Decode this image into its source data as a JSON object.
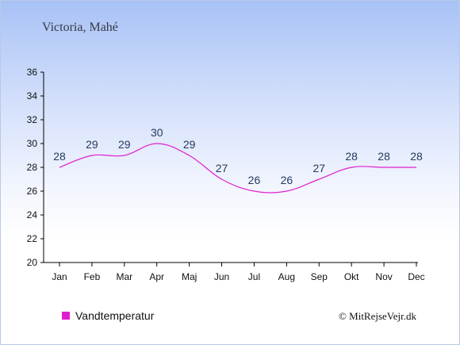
{
  "chart_data": {
    "type": "line",
    "title": "Victoria, Mahé",
    "categories": [
      "Jan",
      "Feb",
      "Mar",
      "Apr",
      "Maj",
      "Jun",
      "Jul",
      "Aug",
      "Sep",
      "Okt",
      "Nov",
      "Dec"
    ],
    "series": [
      {
        "name": "Vandtemperatur",
        "values": [
          28,
          29,
          29,
          30,
          29,
          27,
          26,
          26,
          27,
          28,
          28,
          28
        ],
        "color": "#e020d0"
      }
    ],
    "ylim": [
      20,
      36
    ],
    "yticks": [
      20,
      22,
      24,
      26,
      28,
      30,
      32,
      34,
      36
    ],
    "grid": false,
    "legend": "bottom-left"
  },
  "credit": "© MitRejseVejr.dk",
  "colors": {
    "axis": "#000000",
    "label": "#243a5e",
    "legend_marker": "#e020d0"
  }
}
